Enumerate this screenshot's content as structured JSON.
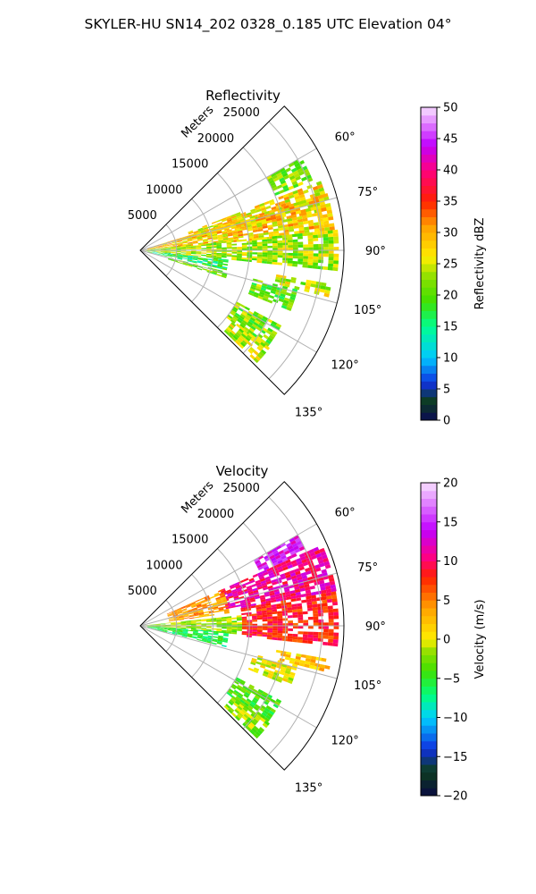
{
  "figure": {
    "suptitle": "SKYLER-HU  SN14_202  0328_0.185 UTC Elevation 04°"
  },
  "chart_data": [
    {
      "type": "heatmap",
      "subtype": "polar-ppi",
      "title": "Reflectivity",
      "radial_axis_label": "Meters",
      "radial_ticks": [
        "5000",
        "10000",
        "15000",
        "20000",
        "25000"
      ],
      "radial_tick_values": [
        5000,
        10000,
        15000,
        20000,
        25000
      ],
      "rlim": [
        0,
        28000
      ],
      "azimuth_ticks": [
        "60°",
        "75°",
        "90°",
        "105°",
        "120°",
        "135°"
      ],
      "azimuth_tick_values": [
        60,
        75,
        90,
        105,
        120,
        135
      ],
      "azimuth_range_deg": [
        45,
        135
      ],
      "grid": true,
      "colorbar": {
        "label": "Reflectivity dBZ",
        "vmin": 0,
        "vmax": 50,
        "ticks": [
          "0",
          "5",
          "10",
          "15",
          "20",
          "25",
          "30",
          "35",
          "40",
          "45",
          "50"
        ],
        "tick_values": [
          0,
          5,
          10,
          15,
          20,
          25,
          30,
          35,
          40,
          45,
          50
        ]
      },
      "echo_regions": [
        {
          "az": [
            60,
            68
          ],
          "r": [
            20000,
            25000
          ],
          "value": 22
        },
        {
          "az": [
            69,
            78
          ],
          "r": [
            7000,
            26000
          ],
          "value": 27
        },
        {
          "az": [
            73,
            85
          ],
          "r": [
            1000,
            26500
          ],
          "value": 28
        },
        {
          "az": [
            84,
            96
          ],
          "r": [
            0,
            27000
          ],
          "value": 23
        },
        {
          "az": [
            96,
            103
          ],
          "r": [
            1000,
            12000
          ],
          "value": 17
        },
        {
          "az": [
            100,
            104
          ],
          "r": [
            19000,
            26500
          ],
          "value": 24
        },
        {
          "az": [
            104,
            108
          ],
          "r": [
            4000,
            12000
          ],
          "value": 22
        },
        {
          "az": [
            104,
            112
          ],
          "r": [
            16000,
            22000
          ],
          "value": 21
        },
        {
          "az": [
            118,
            128
          ],
          "r": [
            15000,
            22000
          ],
          "value": 22
        },
        {
          "az": [
            127,
            134
          ],
          "r": [
            16000,
            22000
          ],
          "value": 24
        }
      ]
    },
    {
      "type": "heatmap",
      "subtype": "polar-ppi",
      "title": "Velocity",
      "radial_axis_label": "Meters",
      "radial_ticks": [
        "5000",
        "10000",
        "15000",
        "20000",
        "25000"
      ],
      "radial_tick_values": [
        5000,
        10000,
        15000,
        20000,
        25000
      ],
      "rlim": [
        0,
        28000
      ],
      "azimuth_ticks": [
        "60°",
        "75°",
        "90°",
        "105°",
        "120°",
        "135°"
      ],
      "azimuth_tick_values": [
        60,
        75,
        90,
        105,
        120,
        135
      ],
      "azimuth_range_deg": [
        45,
        135
      ],
      "grid": true,
      "colorbar": {
        "label": "Velocity (m/s)",
        "vmin": -20,
        "vmax": 20,
        "ticks": [
          "−20",
          "−15",
          "−10",
          "−5",
          "0",
          "5",
          "10",
          "15",
          "20"
        ],
        "tick_values": [
          -20,
          -15,
          -10,
          -5,
          0,
          5,
          10,
          15,
          20
        ]
      },
      "echo_regions": [
        {
          "az": [
            60,
            66
          ],
          "r": [
            18000,
            25000
          ],
          "value": 14
        },
        {
          "az": [
            66,
            80
          ],
          "r": [
            12000,
            27000
          ],
          "value": 11
        },
        {
          "az": [
            66,
            82
          ],
          "r": [
            4000,
            12000
          ],
          "value": 4
        },
        {
          "az": [
            80,
            96
          ],
          "r": [
            14000,
            27000
          ],
          "value": 8
        },
        {
          "az": [
            84,
            95
          ],
          "r": [
            0,
            14000
          ],
          "value": -2
        },
        {
          "az": [
            94,
            104
          ],
          "r": [
            1000,
            12000
          ],
          "value": -6
        },
        {
          "az": [
            100,
            104
          ],
          "r": [
            19000,
            26500
          ],
          "value": 2
        },
        {
          "az": [
            104,
            112
          ],
          "r": [
            16000,
            22000
          ],
          "value": 0
        },
        {
          "az": [
            118,
            128
          ],
          "r": [
            15000,
            22000
          ],
          "value": -4
        },
        {
          "az": [
            127,
            134
          ],
          "r": [
            16000,
            22000
          ],
          "value": -2
        }
      ]
    }
  ]
}
